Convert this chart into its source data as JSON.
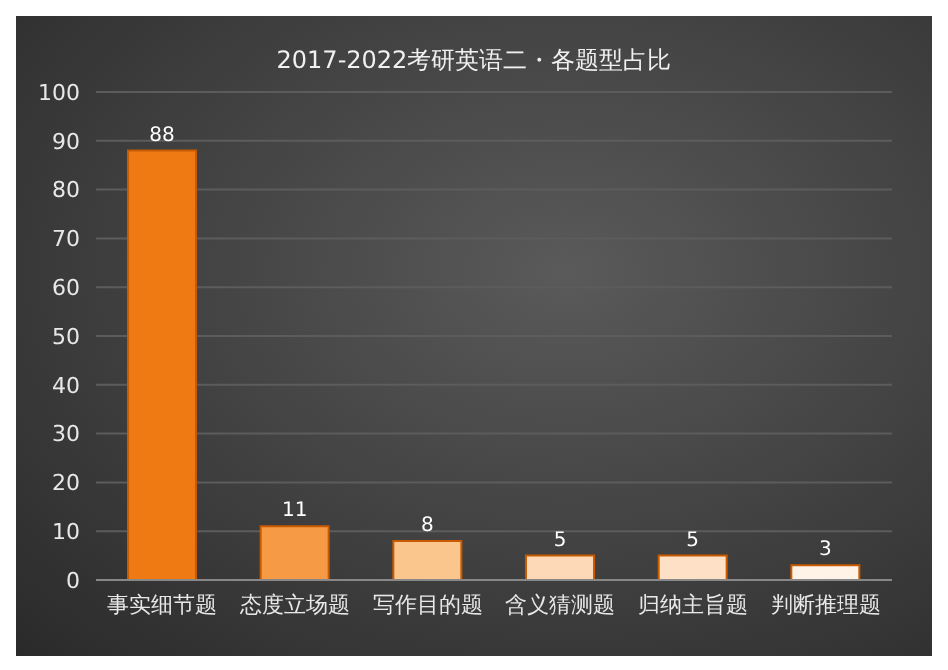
{
  "chart_data": {
    "type": "bar",
    "title": "2017-2022考研英语二・各题型占比",
    "categories": [
      "事实细节题",
      "态度立场题",
      "写作目的题",
      "含义猜测题",
      "归纳主旨题",
      "判断推理题"
    ],
    "values": [
      88,
      11,
      8,
      5,
      5,
      3
    ],
    "colors": [
      "#ef7a14",
      "#f79a45",
      "#fbc58e",
      "#fdd9b8",
      "#fde0c6",
      "#fff3e8"
    ],
    "ylim": [
      0,
      100
    ],
    "yticks": [
      0,
      10,
      20,
      30,
      40,
      50,
      60,
      70,
      80,
      90,
      100
    ],
    "grid": "y",
    "data_labels": true
  }
}
